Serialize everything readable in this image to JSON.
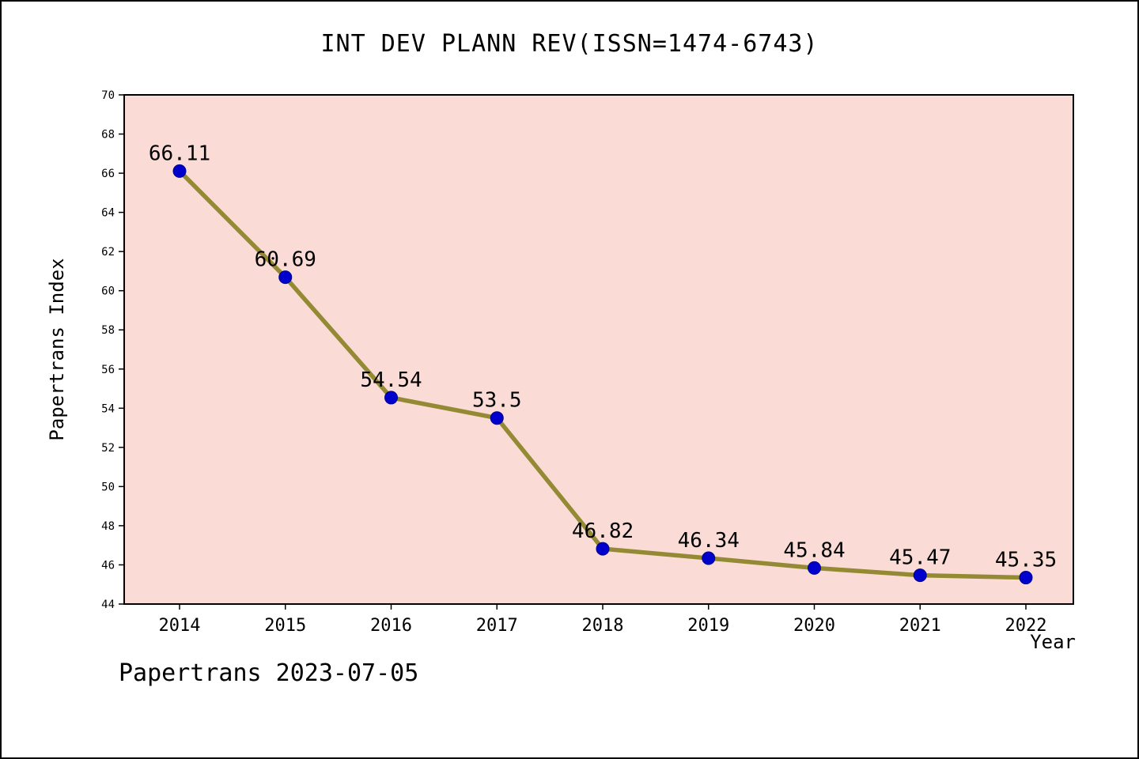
{
  "title": "INT DEV PLANN REV(ISSN=1474-6743)",
  "footer": "Papertrans 2023-07-05",
  "chart_data": {
    "type": "line",
    "title": "INT DEV PLANN REV(ISSN=1474-6743)",
    "xlabel": "Year",
    "ylabel": "Papertrans Index",
    "categories": [
      "2014",
      "2015",
      "2016",
      "2017",
      "2018",
      "2019",
      "2020",
      "2021",
      "2022"
    ],
    "values": [
      66.11,
      60.69,
      54.54,
      53.5,
      46.82,
      46.34,
      45.84,
      45.47,
      45.35
    ],
    "point_labels": [
      "66.11",
      "60.69",
      "54.54",
      "53.5",
      "46.82",
      "46.34",
      "45.84",
      "45.47",
      "45.35"
    ],
    "ylim": [
      44,
      70
    ],
    "yticks": [
      44,
      46,
      48,
      50,
      52,
      54,
      56,
      58,
      60,
      62,
      64,
      66,
      68,
      70
    ],
    "grid": false,
    "legend": "none",
    "colors": {
      "plot_bg": "#FADBD6",
      "line": "#948A33",
      "marker": "#0000CD",
      "marker_edge": "#00008B",
      "axis": "#000000",
      "text": "#000000"
    }
  }
}
